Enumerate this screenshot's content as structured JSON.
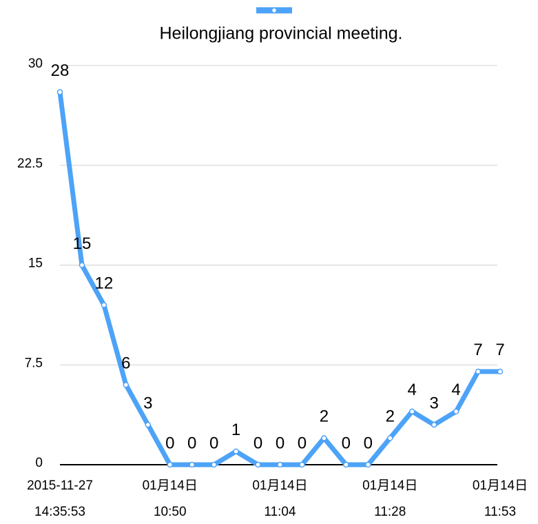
{
  "chart_data": {
    "type": "line",
    "categories": [
      "2015-11-27\n14:35:53",
      null,
      null,
      null,
      null,
      "01月14日\n10:50",
      null,
      null,
      null,
      null,
      "01月14日\n11:04",
      null,
      null,
      null,
      null,
      "01月14日\n11:28",
      null,
      null,
      null,
      null,
      "01月14日\n11:53"
    ],
    "series": [
      {
        "name": "Heilongjiang provincial meeting.",
        "color": "#4da3f7",
        "values": [
          28,
          15,
          12,
          6,
          3,
          0,
          0,
          0,
          1,
          0,
          0,
          0,
          2,
          0,
          0,
          2,
          4,
          3,
          4,
          7,
          7
        ]
      }
    ],
    "ylim": [
      0,
      30
    ],
    "yticks": [
      0,
      7.5,
      15,
      22.5,
      30
    ],
    "grid": true,
    "legend": "top"
  }
}
